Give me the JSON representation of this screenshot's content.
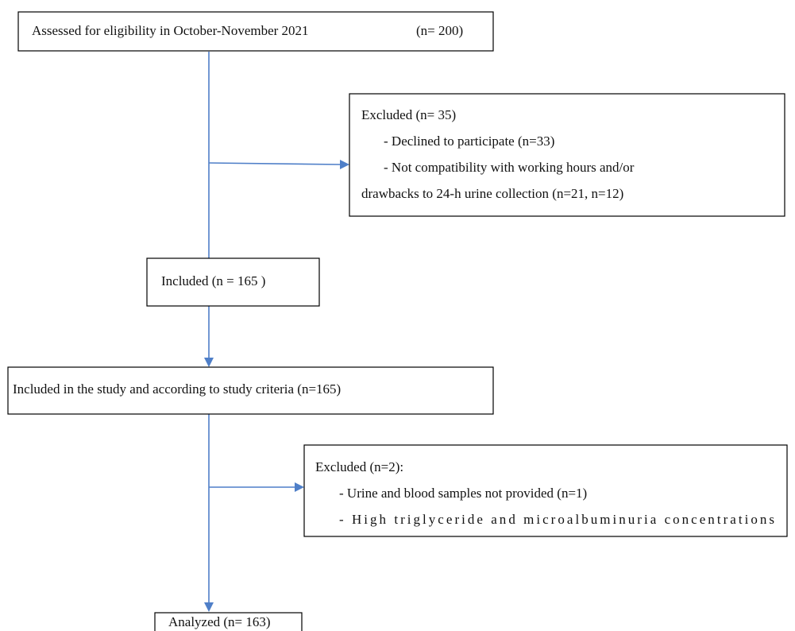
{
  "nodes": [
    {
      "lines": [
        "Assessed for eligibility in October-November 2021",
        "(n= 200)"
      ]
    },
    {
      "lines": [
        "Excluded (n= 35)",
        "- Declined to participate (n=33)",
        "- Not compatibility with working hours and/or",
        "drawbacks to 24-h urine collection (n=21, n=12)"
      ]
    },
    {
      "lines": [
        "Included (n = 165 )"
      ]
    },
    {
      "lines": [
        "Included in the study and according to study criteria (n=165)"
      ]
    },
    {
      "lines": [
        "Excluded (n=2):",
        "- Urine and blood samples not provided (n=1)",
        "- High triglyceride and microalbuminuria concentrations"
      ]
    },
    {
      "lines": [
        "Analyzed (n= 163)"
      ]
    }
  ]
}
